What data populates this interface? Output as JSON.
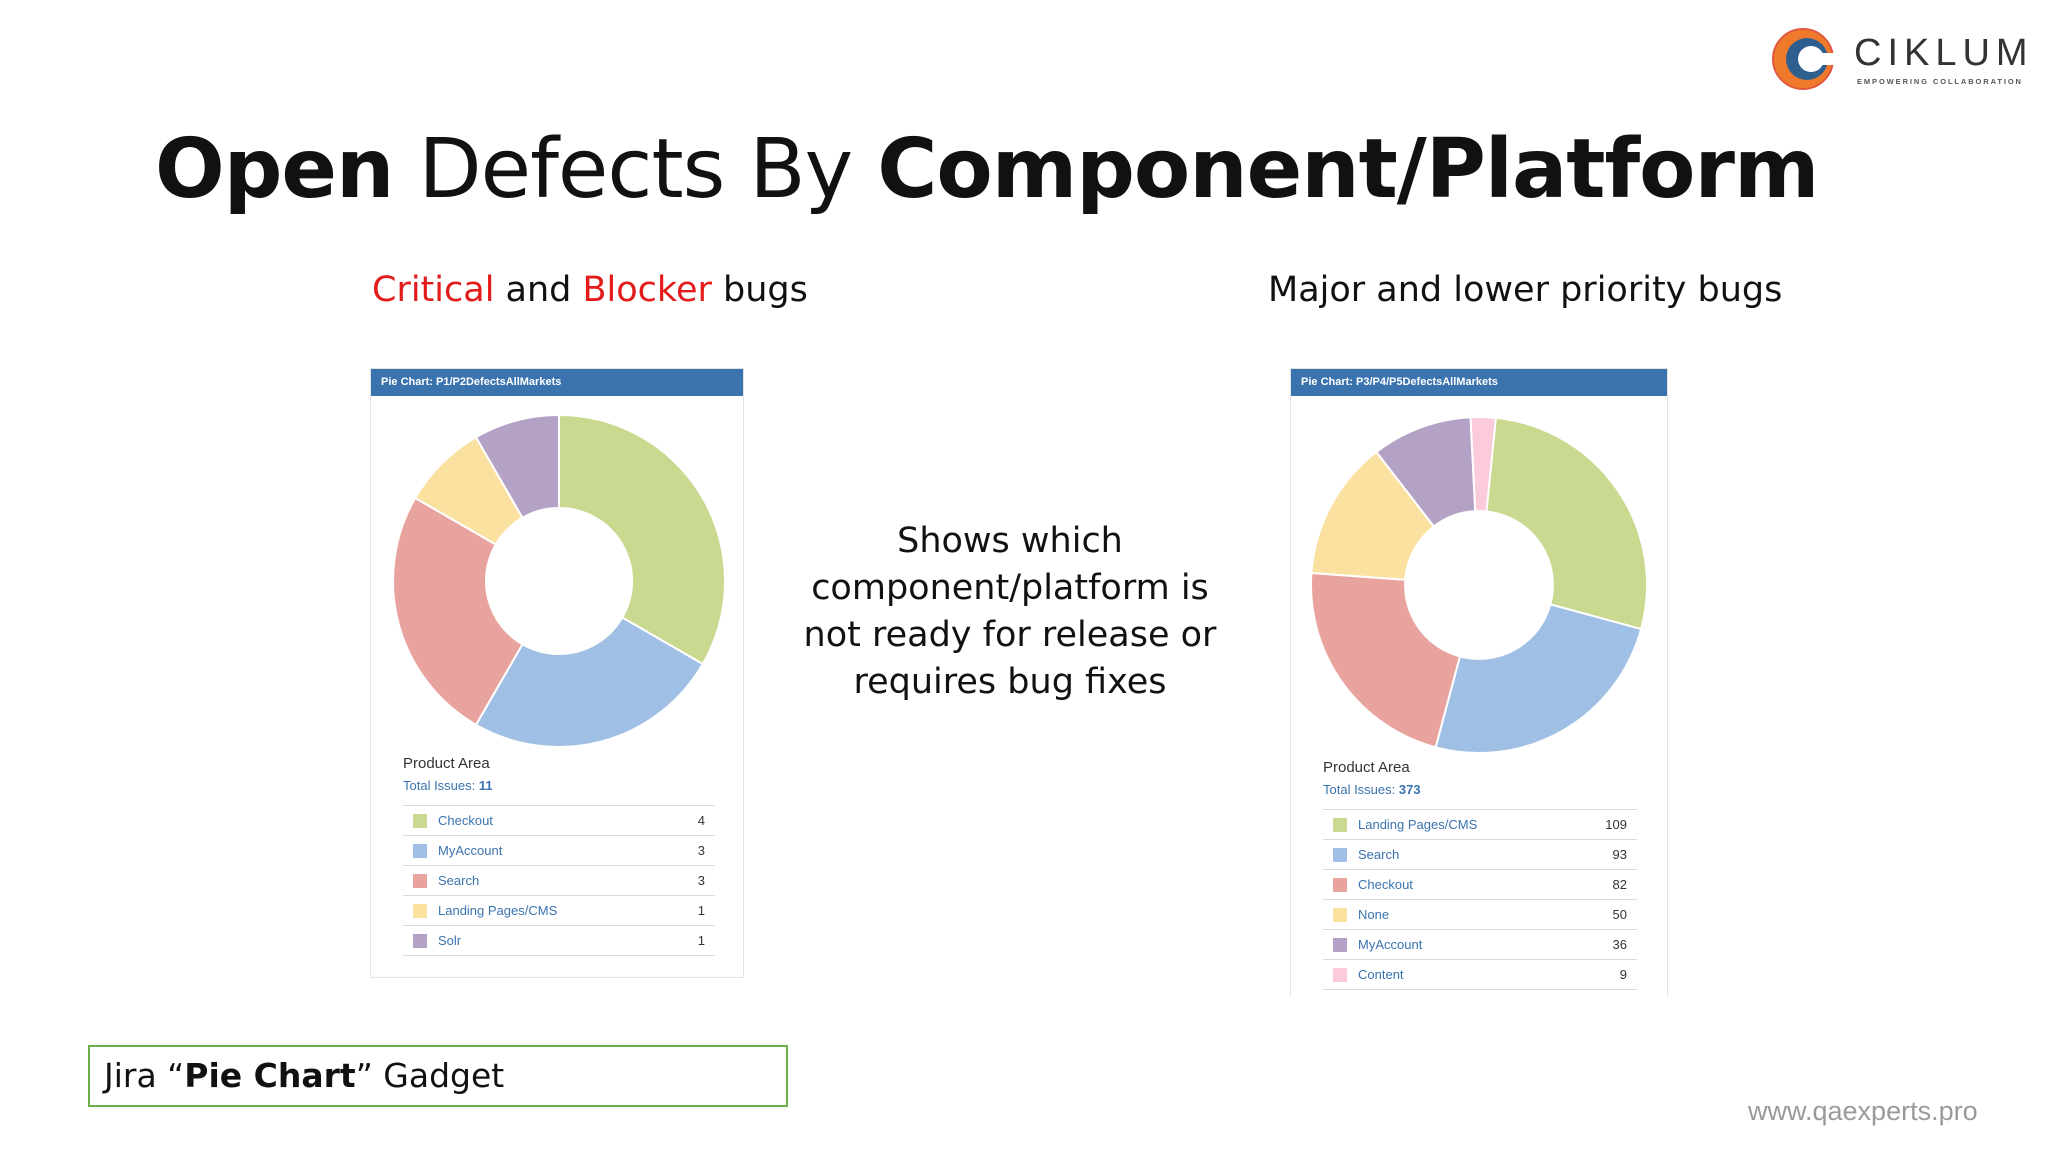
{
  "brand": {
    "name": "CIKLUM",
    "tagline": "EMPOWERING COLLABORATION"
  },
  "title": {
    "part1": "Open",
    "part2": " Defects By ",
    "part3": "Component/Platform"
  },
  "left_heading": {
    "w1": "Critical",
    "w2": " and ",
    "w3": "Blocker",
    "w4": " bugs"
  },
  "right_heading": "Major and lower priority bugs",
  "center_text": "Shows which component/platform is not ready for release or requires bug fixes",
  "caption": {
    "p1": "Jira “",
    "p2": "Pie Chart",
    "p3": "” Gadget"
  },
  "footer_url": "www.qaexperts.pro",
  "gadget_left": {
    "header": "Pie Chart: P1/P2DefectsAllMarkets",
    "area_label": "Product Area",
    "total_label": "Total Issues: ",
    "total_value": "11"
  },
  "gadget_right": {
    "header": "Pie Chart: P3/P4/P5DefectsAllMarkets",
    "area_label": "Product Area",
    "total_label": "Total Issues: ",
    "total_value": "373"
  },
  "chart_data": [
    {
      "type": "pie",
      "title": "Pie Chart: P1/P2DefectsAllMarkets",
      "categories": [
        "Checkout",
        "MyAccount",
        "Search",
        "Landing Pages/CMS",
        "Solr"
      ],
      "values": [
        4,
        3,
        3,
        1,
        1
      ],
      "colors": [
        "#c9d98f",
        "#9fbfe5",
        "#e8a39e",
        "#fbe1a0",
        "#b3a2c6"
      ]
    },
    {
      "type": "pie",
      "title": "Pie Chart: P3/P4/P5DefectsAllMarkets",
      "categories": [
        "Landing Pages/CMS",
        "Search",
        "Checkout",
        "None",
        "MyAccount",
        "Content"
      ],
      "values": [
        109,
        93,
        82,
        50,
        36,
        9
      ],
      "total": 373,
      "colors": [
        "#c9d98f",
        "#9fbfe5",
        "#e8a39e",
        "#fbe1a0",
        "#b3a2c6",
        "#fbcadb"
      ],
      "other_colors": [
        "#c5c5c5",
        "#d9c7a6",
        "#a9c4a0",
        "#e0d0a0"
      ]
    }
  ]
}
